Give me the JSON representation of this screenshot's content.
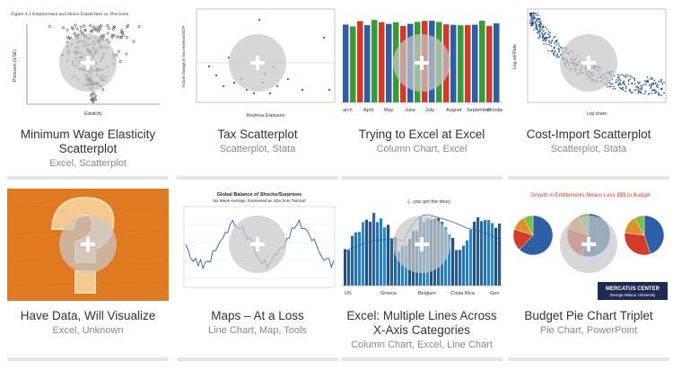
{
  "cards": [
    {
      "title": "Minimum Wage Elasticity Scatterplot",
      "tags": [
        "Excel",
        "Scatterplot"
      ],
      "thumb_caption": "Figure 4.1  Employment and Hours Elasticities vs. Precision",
      "thumb_xlabel": "Elasticity",
      "thumb_ylabel": "Precision (1/SE)"
    },
    {
      "title": "Tax Scatterplot",
      "tags": [
        "Scatterplot",
        "Stata"
      ],
      "thumb_xlabel": "Revenue Exposure",
      "thumb_ylabel": "Actual change in tax revenue/GDP"
    },
    {
      "title": "Trying to Excel at Excel",
      "tags": [
        "Column Chart",
        "Excel"
      ],
      "months": [
        "arch",
        "April",
        "May",
        "June",
        "July",
        "August",
        "September",
        "Octobe"
      ]
    },
    {
      "title": "Cost-Import Scatterplot",
      "tags": [
        "Scatterplot",
        "Stata"
      ],
      "thumb_xlabel": "Log share",
      "thumb_ylabel": "Log ad-Rate"
    },
    {
      "title": "Have Data, Will Visualize",
      "tags": [
        "Excel",
        "Unknown"
      ]
    },
    {
      "title": "Maps – At a Loss",
      "tags": [
        "Line Chart",
        "Map",
        "Tools"
      ],
      "thumb_title": "Global Balance of Shocks/Surprises",
      "thumb_subtitle": "Six Week Average, Expressed as SDs from 'Normal'"
    },
    {
      "title": "Excel: Multiple Lines Across X-Axis Categories",
      "tags": [
        "Column Chart",
        "Excel",
        "Line Chart"
      ],
      "thumb_note": "(...you get the idea)",
      "countries": [
        "US",
        "Greece",
        "Belgium",
        "Costa Rica",
        "Gen"
      ]
    },
    {
      "title": "Budget Pie Chart Triplet",
      "tags": [
        "Pie Chart",
        "PowerPoint"
      ],
      "thumb_title": "Growth in Entitlements Means Less $$$ to Budget",
      "thumb_brand": "MERCATUS CENTER",
      "thumb_brand_sub": "George Mason University"
    }
  ],
  "colors": {
    "accent_blue": "#2e5fa5",
    "green": "#3a9a3a",
    "red": "#d23a2a",
    "orange": "#e0902a"
  }
}
